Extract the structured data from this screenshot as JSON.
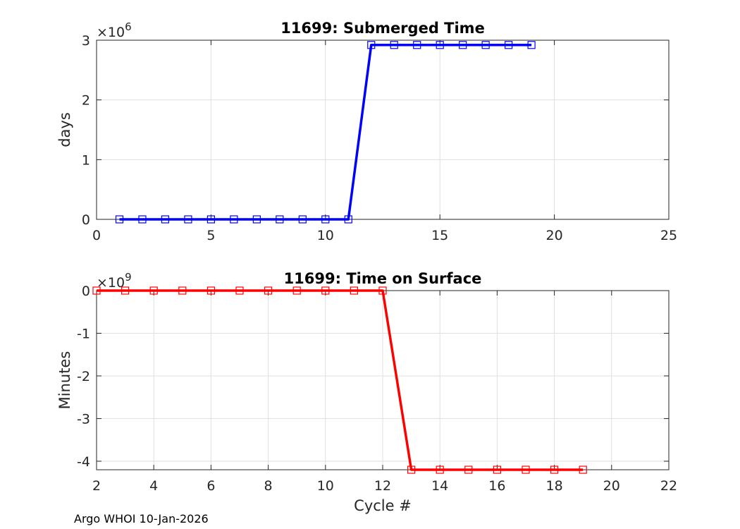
{
  "footer": "Argo WHOI 10-Jan-2026",
  "chart_data": [
    {
      "type": "line",
      "title": "11699: Submerged Time",
      "xlabel": "",
      "ylabel": "days",
      "y_exponent_base": "×10",
      "y_exponent_power": "6",
      "xlim": [
        0,
        25
      ],
      "ylim": [
        0,
        3
      ],
      "xticks": [
        0,
        5,
        10,
        15,
        20,
        25
      ],
      "yticks": [
        0,
        1,
        2,
        3
      ],
      "grid": true,
      "color": "#0000ff",
      "marker": "square",
      "x": [
        1,
        2,
        3,
        4,
        5,
        6,
        7,
        8,
        9,
        10,
        11,
        12,
        13,
        14,
        15,
        16,
        17,
        18,
        19
      ],
      "y": [
        0,
        0,
        0,
        0,
        0,
        0,
        0,
        0,
        0,
        0,
        0,
        2.92,
        2.92,
        2.92,
        2.92,
        2.92,
        2.92,
        2.92,
        2.92
      ]
    },
    {
      "type": "line",
      "title": "11699: Time on Surface",
      "xlabel": "Cycle #",
      "ylabel": "Minutes",
      "y_exponent_base": "×10",
      "y_exponent_power": "9",
      "xlim": [
        2,
        22
      ],
      "ylim": [
        -4.2,
        0
      ],
      "xticks": [
        2,
        4,
        6,
        8,
        10,
        12,
        14,
        16,
        18,
        20,
        22
      ],
      "yticks": [
        0,
        -1,
        -2,
        -3,
        -4
      ],
      "grid": true,
      "color": "#ff0000",
      "marker": "square",
      "x": [
        2,
        3,
        4,
        5,
        6,
        7,
        8,
        9,
        10,
        11,
        12,
        13,
        14,
        15,
        16,
        17,
        18,
        19
      ],
      "y": [
        0,
        0,
        0,
        0,
        0,
        0,
        0,
        0,
        0,
        0,
        0,
        -4.2,
        -4.2,
        -4.2,
        -4.2,
        -4.2,
        -4.2,
        -4.2
      ]
    }
  ]
}
